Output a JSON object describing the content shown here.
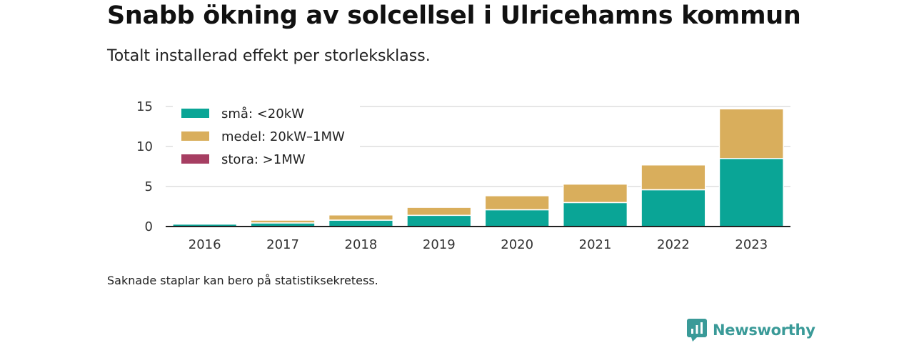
{
  "header": {
    "title": "Snabb ökning av solcellsel i Ulricehamns kommun",
    "subtitle": "Totalt installerad effekt per storleksklass."
  },
  "footer": {
    "note": "Saknade staplar kan bero på statistiksekretess.",
    "brand": "Newsworthy",
    "brand_icon": "newsworthy-logo-icon"
  },
  "colors": {
    "small": "#0aa596",
    "medium": "#d9ae5c",
    "large": "#a63e62",
    "grid": "#dddddd",
    "axis": "#222222",
    "brand": "#3a9a98"
  },
  "chart_data": {
    "type": "bar",
    "stacked": true,
    "categories": [
      "2016",
      "2017",
      "2018",
      "2019",
      "2020",
      "2021",
      "2022",
      "2023"
    ],
    "series": [
      {
        "name": "små: <20kW",
        "color": "#0aa596",
        "values": [
          0.3,
          0.45,
          0.8,
          1.4,
          2.1,
          3.0,
          4.6,
          8.5
        ]
      },
      {
        "name": "medel: 20kW–1MW",
        "color": "#d9ae5c",
        "values": [
          0.0,
          0.35,
          0.65,
          1.0,
          1.75,
          2.3,
          3.1,
          6.2
        ]
      },
      {
        "name": "stora: >1MW",
        "color": "#a63e62",
        "values": [
          0,
          0,
          0,
          0,
          0,
          0,
          0,
          0
        ]
      }
    ],
    "yticks": [
      0,
      5,
      10,
      15
    ],
    "ylim": [
      0,
      15
    ],
    "grid": true,
    "legend_position": "top-left"
  }
}
